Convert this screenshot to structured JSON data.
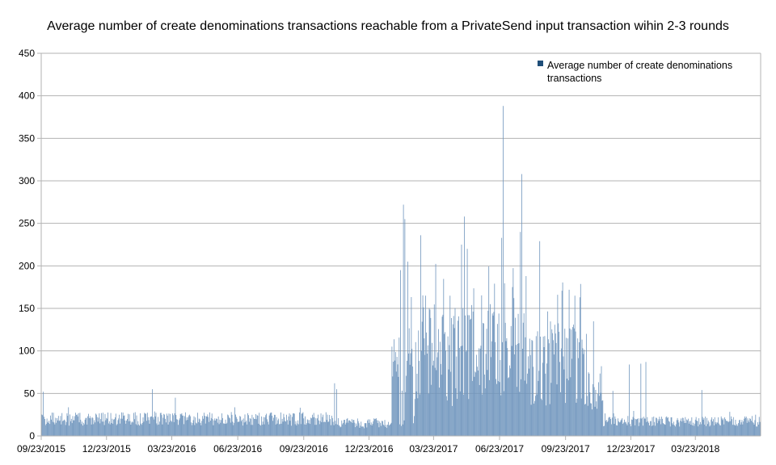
{
  "chart_data": {
    "type": "bar",
    "title": "Average number of create denominations transactions reachable from a PrivateSend input transaction wihin 2-3 rounds",
    "xlabel": "",
    "ylabel": "",
    "ylim": [
      0,
      450
    ],
    "yticks": [
      0,
      50,
      100,
      150,
      200,
      250,
      300,
      350,
      400,
      450
    ],
    "x_start": "2015-09-23",
    "x_end": "2018-06-22",
    "xtick_labels": [
      "09/23/2015",
      "12/23/2015",
      "03/23/2016",
      "06/23/2016",
      "09/23/2016",
      "12/23/2016",
      "03/23/2017",
      "06/23/2017",
      "09/23/2017",
      "12/23/2017",
      "03/23/2018"
    ],
    "grid": true,
    "legend": {
      "position": "top-right"
    },
    "series": [
      {
        "name": "Average number of create denominations transactions",
        "color": "#6f95bd",
        "legend_color": "#1f4e79",
        "interval": "daily",
        "segments": [
          {
            "from": "2015-09-23",
            "to": "2016-11-10",
            "base": 20,
            "range": 8
          },
          {
            "from": "2016-11-10",
            "to": "2017-01-25",
            "base": 15,
            "range": 6
          },
          {
            "from": "2017-01-25",
            "to": "2017-03-01",
            "base": 70,
            "range": 60
          },
          {
            "from": "2017-03-01",
            "to": "2017-05-15",
            "base": 95,
            "range": 60
          },
          {
            "from": "2017-05-15",
            "to": "2017-08-01",
            "base": 100,
            "range": 55
          },
          {
            "from": "2017-08-01",
            "to": "2017-10-20",
            "base": 85,
            "range": 50
          },
          {
            "from": "2017-10-20",
            "to": "2017-11-15",
            "base": 50,
            "range": 25
          },
          {
            "from": "2017-11-15",
            "to": "2018-06-23",
            "base": 17,
            "range": 6
          }
        ],
        "peaks": [
          {
            "date": "2015-09-26",
            "value": 52
          },
          {
            "date": "2016-02-25",
            "value": 55
          },
          {
            "date": "2016-03-28",
            "value": 45
          },
          {
            "date": "2016-11-05",
            "value": 62
          },
          {
            "date": "2016-11-08",
            "value": 55
          },
          {
            "date": "2017-01-24",
            "value": 105
          },
          {
            "date": "2017-02-05",
            "value": 195
          },
          {
            "date": "2017-02-09",
            "value": 272
          },
          {
            "date": "2017-02-11",
            "value": 255
          },
          {
            "date": "2017-02-15",
            "value": 205
          },
          {
            "date": "2017-03-05",
            "value": 236
          },
          {
            "date": "2017-03-12",
            "value": 165
          },
          {
            "date": "2017-04-15",
            "value": 165
          },
          {
            "date": "2017-05-01",
            "value": 225
          },
          {
            "date": "2017-05-05",
            "value": 258
          },
          {
            "date": "2017-05-09",
            "value": 220
          },
          {
            "date": "2017-06-10",
            "value": 155
          },
          {
            "date": "2017-06-26",
            "value": 233
          },
          {
            "date": "2017-06-28",
            "value": 388
          },
          {
            "date": "2017-07-11",
            "value": 175
          },
          {
            "date": "2017-07-22",
            "value": 240
          },
          {
            "date": "2017-07-24",
            "value": 308
          },
          {
            "date": "2017-07-30",
            "value": 188
          },
          {
            "date": "2017-08-18",
            "value": 229
          },
          {
            "date": "2017-09-28",
            "value": 172
          },
          {
            "date": "2017-10-06",
            "value": 165
          },
          {
            "date": "2017-10-13",
            "value": 163
          },
          {
            "date": "2017-11-28",
            "value": 53
          },
          {
            "date": "2017-12-21",
            "value": 84
          },
          {
            "date": "2018-01-06",
            "value": 85
          },
          {
            "date": "2018-01-13",
            "value": 87
          },
          {
            "date": "2018-04-01",
            "value": 54
          }
        ]
      }
    ]
  }
}
